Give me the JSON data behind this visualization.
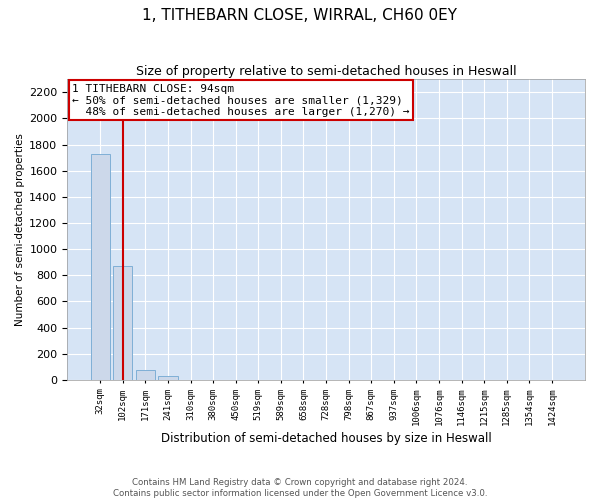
{
  "title": "1, TITHEBARN CLOSE, WIRRAL, CH60 0EY",
  "subtitle": "Size of property relative to semi-detached houses in Heswall",
  "xlabel": "Distribution of semi-detached houses by size in Heswall",
  "ylabel": "Number of semi-detached properties",
  "footer_line1": "Contains HM Land Registry data © Crown copyright and database right 2024.",
  "footer_line2": "Contains public sector information licensed under the Open Government Licence v3.0.",
  "bar_labels": [
    "32sqm",
    "102sqm",
    "171sqm",
    "241sqm",
    "310sqm",
    "380sqm",
    "450sqm",
    "519sqm",
    "589sqm",
    "658sqm",
    "728sqm",
    "798sqm",
    "867sqm",
    "937sqm",
    "1006sqm",
    "1076sqm",
    "1146sqm",
    "1215sqm",
    "1285sqm",
    "1354sqm",
    "1424sqm"
  ],
  "bar_values": [
    1730,
    870,
    75,
    30,
    0,
    0,
    0,
    0,
    0,
    0,
    0,
    0,
    0,
    0,
    0,
    0,
    0,
    0,
    0,
    0,
    0
  ],
  "bar_color": "#ccd8ea",
  "bar_edge_color": "#7fafd6",
  "vline_color": "#cc0000",
  "vline_x": 1,
  "annotation_text": "1 TITHEBARN CLOSE: 94sqm\n← 50% of semi-detached houses are smaller (1,329)\n  48% of semi-detached houses are larger (1,270) →",
  "annotation_box_edgecolor": "#cc0000",
  "annotation_box_facecolor": "white",
  "ylim": [
    0,
    2300
  ],
  "yticks": [
    0,
    200,
    400,
    600,
    800,
    1000,
    1200,
    1400,
    1600,
    1800,
    2000,
    2200
  ],
  "grid_color": "#ffffff",
  "plot_bg_color": "#d6e4f5",
  "title_fontsize": 11,
  "subtitle_fontsize": 9,
  "annotation_fontsize": 8
}
